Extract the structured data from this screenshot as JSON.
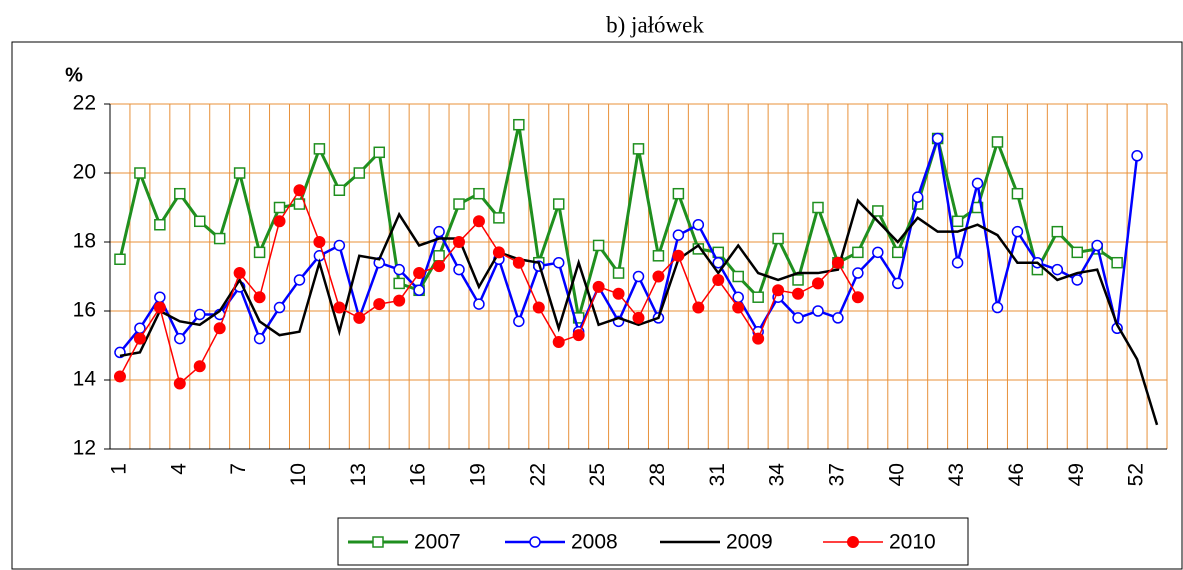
{
  "chart_data": {
    "type": "line",
    "title": "b) jałówek",
    "y_label": "%",
    "categories": [
      1,
      null,
      null,
      4,
      null,
      null,
      7,
      null,
      null,
      10,
      null,
      null,
      13,
      null,
      null,
      16,
      null,
      null,
      19,
      null,
      null,
      22,
      null,
      null,
      25,
      null,
      null,
      28,
      null,
      null,
      31,
      null,
      null,
      34,
      null,
      null,
      37,
      null,
      null,
      40,
      null,
      null,
      43,
      null,
      null,
      46,
      null,
      null,
      49,
      null,
      null,
      52,
      null
    ],
    "ylim": [
      12,
      22
    ],
    "yticks": [
      12,
      14,
      16,
      18,
      20,
      22
    ],
    "grid": true,
    "legend": "bottom",
    "series": [
      {
        "name": "2007",
        "color": "#1f8f1f",
        "marker": "square",
        "values": [
          17.5,
          20.0,
          18.5,
          19.4,
          18.6,
          18.1,
          20.0,
          17.7,
          19.0,
          19.1,
          20.7,
          19.5,
          20.0,
          20.6,
          16.8,
          16.6,
          17.6,
          19.1,
          19.4,
          18.7,
          21.4,
          17.4,
          19.1,
          15.8,
          17.9,
          17.1,
          20.7,
          17.6,
          19.4,
          17.8,
          17.7,
          17.0,
          16.4,
          18.1,
          16.9,
          19.0,
          17.4,
          17.7,
          18.9,
          17.7,
          19.1,
          21.0,
          18.6,
          19.0,
          20.9,
          19.4,
          17.2,
          18.3,
          17.7,
          17.8,
          17.4,
          null,
          null
        ]
      },
      {
        "name": "2008",
        "color": "#0000ff",
        "marker": "circle",
        "values": [
          14.8,
          15.5,
          16.4,
          15.2,
          15.9,
          15.9,
          16.7,
          15.2,
          16.1,
          16.9,
          17.6,
          17.9,
          15.8,
          17.4,
          17.2,
          16.6,
          18.3,
          17.2,
          16.2,
          17.5,
          15.7,
          17.3,
          17.4,
          15.4,
          16.7,
          15.7,
          17.0,
          15.8,
          18.2,
          18.5,
          17.4,
          16.4,
          15.4,
          16.4,
          15.8,
          16.0,
          15.8,
          17.1,
          17.7,
          16.8,
          19.3,
          21.0,
          17.4,
          19.7,
          16.1,
          18.3,
          17.4,
          17.2,
          16.9,
          17.9,
          15.5,
          20.5,
          null
        ]
      },
      {
        "name": "2009",
        "color": "#000000",
        "marker": "none",
        "values": [
          14.7,
          14.8,
          16.0,
          15.7,
          15.6,
          16.0,
          16.9,
          15.7,
          15.3,
          15.4,
          17.4,
          15.4,
          17.6,
          17.5,
          18.8,
          17.9,
          18.1,
          18.1,
          16.7,
          17.7,
          17.5,
          17.4,
          15.5,
          17.4,
          15.6,
          15.8,
          15.6,
          15.8,
          17.5,
          17.9,
          17.1,
          17.9,
          17.1,
          16.9,
          17.1,
          17.1,
          17.2,
          19.2,
          18.6,
          18.0,
          18.7,
          18.3,
          18.3,
          18.5,
          18.2,
          17.4,
          17.4,
          16.9,
          17.1,
          17.2,
          15.6,
          14.6,
          12.7
        ]
      },
      {
        "name": "2010",
        "color": "#ff0000",
        "marker": "dot",
        "values": [
          14.1,
          15.2,
          16.1,
          13.9,
          14.4,
          15.5,
          17.1,
          16.4,
          18.6,
          19.5,
          18.0,
          16.1,
          15.8,
          16.2,
          16.3,
          17.1,
          17.3,
          18.0,
          18.6,
          17.7,
          17.4,
          16.1,
          15.1,
          15.3,
          16.7,
          16.5,
          15.8,
          17.0,
          17.6,
          16.1,
          16.9,
          16.1,
          15.2,
          16.6,
          16.5,
          16.8,
          17.4,
          16.4,
          null,
          null,
          null,
          null,
          null,
          null,
          null,
          null,
          null,
          null,
          null,
          null,
          null,
          null,
          null
        ]
      }
    ]
  }
}
